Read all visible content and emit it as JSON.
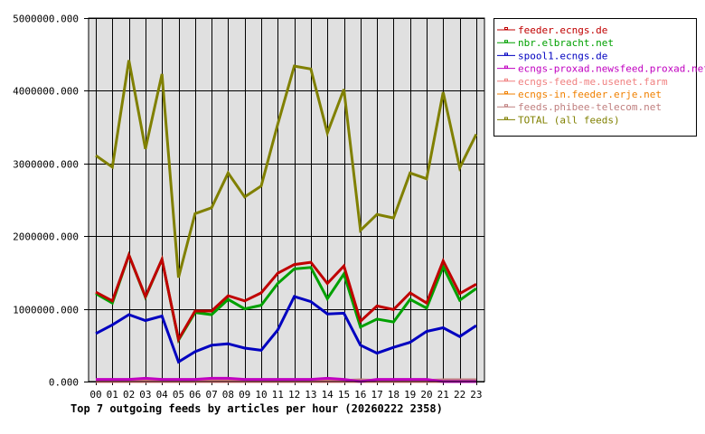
{
  "chart_data": {
    "type": "line",
    "title": "Top 7 outgoing feeds by articles per hour (20260222 2358)",
    "xlabel": "",
    "ylabel": "",
    "ylim": [
      0,
      5000000
    ],
    "yticks": [
      "0.000",
      "1000000.000",
      "2000000.000",
      "3000000.000",
      "4000000.000",
      "5000000.000"
    ],
    "grid": true,
    "legend_position": "right",
    "categories": [
      "00",
      "01",
      "02",
      "03",
      "04",
      "05",
      "06",
      "07",
      "08",
      "09",
      "10",
      "11",
      "12",
      "13",
      "14",
      "15",
      "16",
      "17",
      "18",
      "19",
      "20",
      "21",
      "22",
      "23"
    ],
    "series": [
      {
        "name": "feeder.ecngs.de",
        "color": "#C00000",
        "values": [
          1230000,
          1110000,
          1740000,
          1170000,
          1680000,
          580000,
          970000,
          970000,
          1180000,
          1110000,
          1220000,
          1490000,
          1610000,
          1640000,
          1350000,
          1590000,
          830000,
          1040000,
          990000,
          1220000,
          1080000,
          1660000,
          1210000,
          1340000
        ]
      },
      {
        "name": "nbr.elbracht.net",
        "color": "#00A000",
        "values": [
          1210000,
          1080000,
          1740000,
          1160000,
          1680000,
          570000,
          950000,
          920000,
          1130000,
          1000000,
          1050000,
          1350000,
          1550000,
          1570000,
          1140000,
          1480000,
          750000,
          860000,
          820000,
          1130000,
          1010000,
          1580000,
          1120000,
          1280000
        ]
      },
      {
        "name": "spool1.ecngs.de",
        "color": "#0000C0",
        "values": [
          660000,
          780000,
          920000,
          840000,
          900000,
          270000,
          410000,
          500000,
          520000,
          460000,
          430000,
          710000,
          1170000,
          1100000,
          930000,
          940000,
          500000,
          390000,
          470000,
          540000,
          690000,
          740000,
          620000,
          770000
        ]
      },
      {
        "name": "ecngs-proxad.newsfeed.proxad.net",
        "color": "#C000C0",
        "values": [
          30000,
          30000,
          30000,
          45000,
          30000,
          30000,
          30000,
          45000,
          45000,
          30000,
          30000,
          30000,
          30000,
          30000,
          45000,
          30000,
          0,
          30000,
          30000,
          30000,
          30000,
          0,
          0,
          0
        ]
      },
      {
        "name": "ecngs-feed-me.usenet.farm",
        "color": "#F08080",
        "values": [
          0,
          0,
          0,
          0,
          0,
          0,
          0,
          0,
          0,
          0,
          0,
          0,
          0,
          0,
          0,
          0,
          0,
          0,
          0,
          0,
          0,
          0,
          0,
          0
        ]
      },
      {
        "name": "ecngs-in.feeder.erje.net",
        "color": "#F08000",
        "values": [
          0,
          0,
          0,
          0,
          0,
          0,
          0,
          0,
          0,
          0,
          0,
          0,
          0,
          0,
          0,
          0,
          0,
          0,
          0,
          0,
          0,
          0,
          0,
          0
        ]
      },
      {
        "name": "feeds.phibee-telecom.net",
        "color": "#C08080",
        "values": [
          15000,
          15000,
          15000,
          15000,
          15000,
          15000,
          15000,
          15000,
          15000,
          15000,
          15000,
          15000,
          15000,
          15000,
          15000,
          15000,
          25000,
          15000,
          15000,
          15000,
          15000,
          25000,
          25000,
          25000
        ]
      },
      {
        "name": "TOTAL (all feeds)",
        "color": "#808000",
        "values": [
          3110000,
          2950000,
          4420000,
          3200000,
          4230000,
          1430000,
          2310000,
          2390000,
          2870000,
          2540000,
          2690000,
          3540000,
          4340000,
          4300000,
          3420000,
          4020000,
          2080000,
          2300000,
          2250000,
          2870000,
          2790000,
          3980000,
          2940000,
          3400000
        ]
      }
    ]
  },
  "colors": {
    "plot_background": "#E0E0E0",
    "grid": "#000000",
    "background": "#FFFFFF"
  }
}
